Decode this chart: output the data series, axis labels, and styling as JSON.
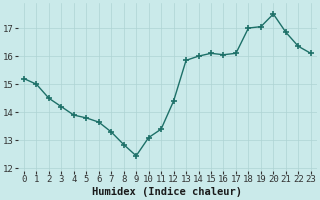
{
  "x": [
    0,
    1,
    2,
    3,
    4,
    5,
    6,
    7,
    8,
    9,
    10,
    11,
    12,
    13,
    14,
    15,
    16,
    17,
    18,
    19,
    20,
    21,
    22,
    23
  ],
  "y": [
    15.2,
    15.0,
    14.5,
    14.2,
    13.9,
    13.8,
    13.65,
    13.3,
    12.85,
    12.45,
    13.1,
    13.4,
    14.4,
    15.85,
    16.0,
    16.1,
    16.05,
    16.1,
    17.0,
    17.05,
    17.5,
    16.85,
    16.35,
    16.1
  ],
  "line_color": "#1d7068",
  "marker": "+",
  "marker_size": 4,
  "marker_linewidth": 1.2,
  "bg_color": "#caeaea",
  "grid_color": "#aed4d4",
  "grid_linewidth": 0.5,
  "xlabel": "Humidex (Indice chaleur)",
  "ylim": [
    11.9,
    17.9
  ],
  "xlim": [
    -0.5,
    23.5
  ],
  "yticks": [
    12,
    13,
    14,
    15,
    16,
    17
  ],
  "xticks": [
    0,
    1,
    2,
    3,
    4,
    5,
    6,
    7,
    8,
    9,
    10,
    11,
    12,
    13,
    14,
    15,
    16,
    17,
    18,
    19,
    20,
    21,
    22,
    23
  ],
  "tick_fontsize": 6.5,
  "xlabel_fontsize": 7.5,
  "linewidth": 1.0,
  "font_family": "monospace"
}
